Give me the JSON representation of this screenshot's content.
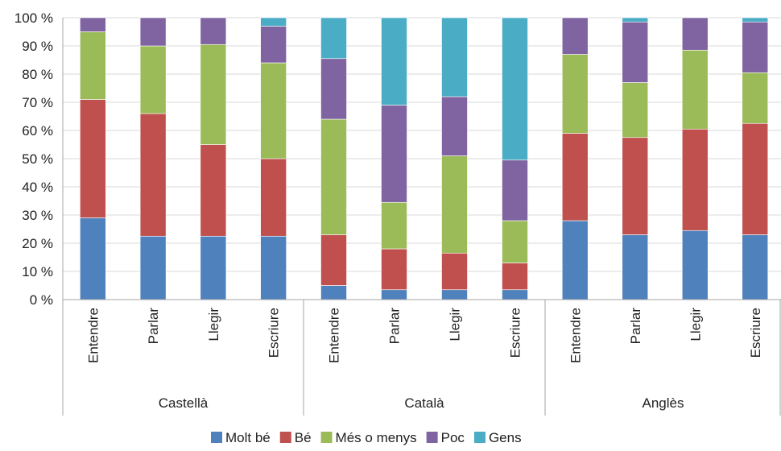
{
  "chart_data": {
    "type": "bar",
    "stacked": true,
    "percent": true,
    "title": "",
    "xlabel": "",
    "ylabel": "",
    "ylim": [
      0,
      100
    ],
    "yticks": [
      "0 %",
      "10 %",
      "20 %",
      "30 %",
      "40 %",
      "50 %",
      "60 %",
      "70 %",
      "80 %",
      "90 %",
      "100 %"
    ],
    "groups": [
      {
        "name": "Castellà",
        "categories": [
          "Entendre",
          "Parlar",
          "Llegir",
          "Escriure"
        ]
      },
      {
        "name": "Català",
        "categories": [
          "Entendre",
          "Parlar",
          "Llegir",
          "Escriure"
        ]
      },
      {
        "name": "Anglès",
        "categories": [
          "Entendre",
          "Parlar",
          "Llegir",
          "Escriure"
        ]
      }
    ],
    "series": [
      {
        "name": "Molt bé",
        "color": "#4f81bd",
        "values": [
          29,
          22.5,
          22.5,
          22.5,
          5,
          3.5,
          3.5,
          3.5,
          28,
          23,
          24.5,
          23
        ]
      },
      {
        "name": "Bé",
        "color": "#c0504d",
        "values": [
          42,
          43.5,
          32.5,
          27.5,
          18,
          14.5,
          13,
          9.5,
          31,
          34.5,
          36,
          39.5
        ]
      },
      {
        "name": "Més o menys",
        "color": "#9bbb59",
        "values": [
          24,
          24,
          35.5,
          34,
          41,
          16.5,
          34.5,
          15,
          28,
          19.5,
          28,
          18
        ]
      },
      {
        "name": "Poc",
        "color": "#8064a2",
        "values": [
          5,
          10,
          9.5,
          13,
          21.5,
          34.5,
          21,
          21.5,
          13,
          21.5,
          11.5,
          18
        ]
      },
      {
        "name": "Gens",
        "color": "#4bacc6",
        "values": [
          0,
          0,
          0,
          3,
          14.5,
          31,
          28,
          50.5,
          0,
          1.5,
          0,
          1.5
        ]
      }
    ],
    "grid": true,
    "legend_position": "bottom"
  }
}
